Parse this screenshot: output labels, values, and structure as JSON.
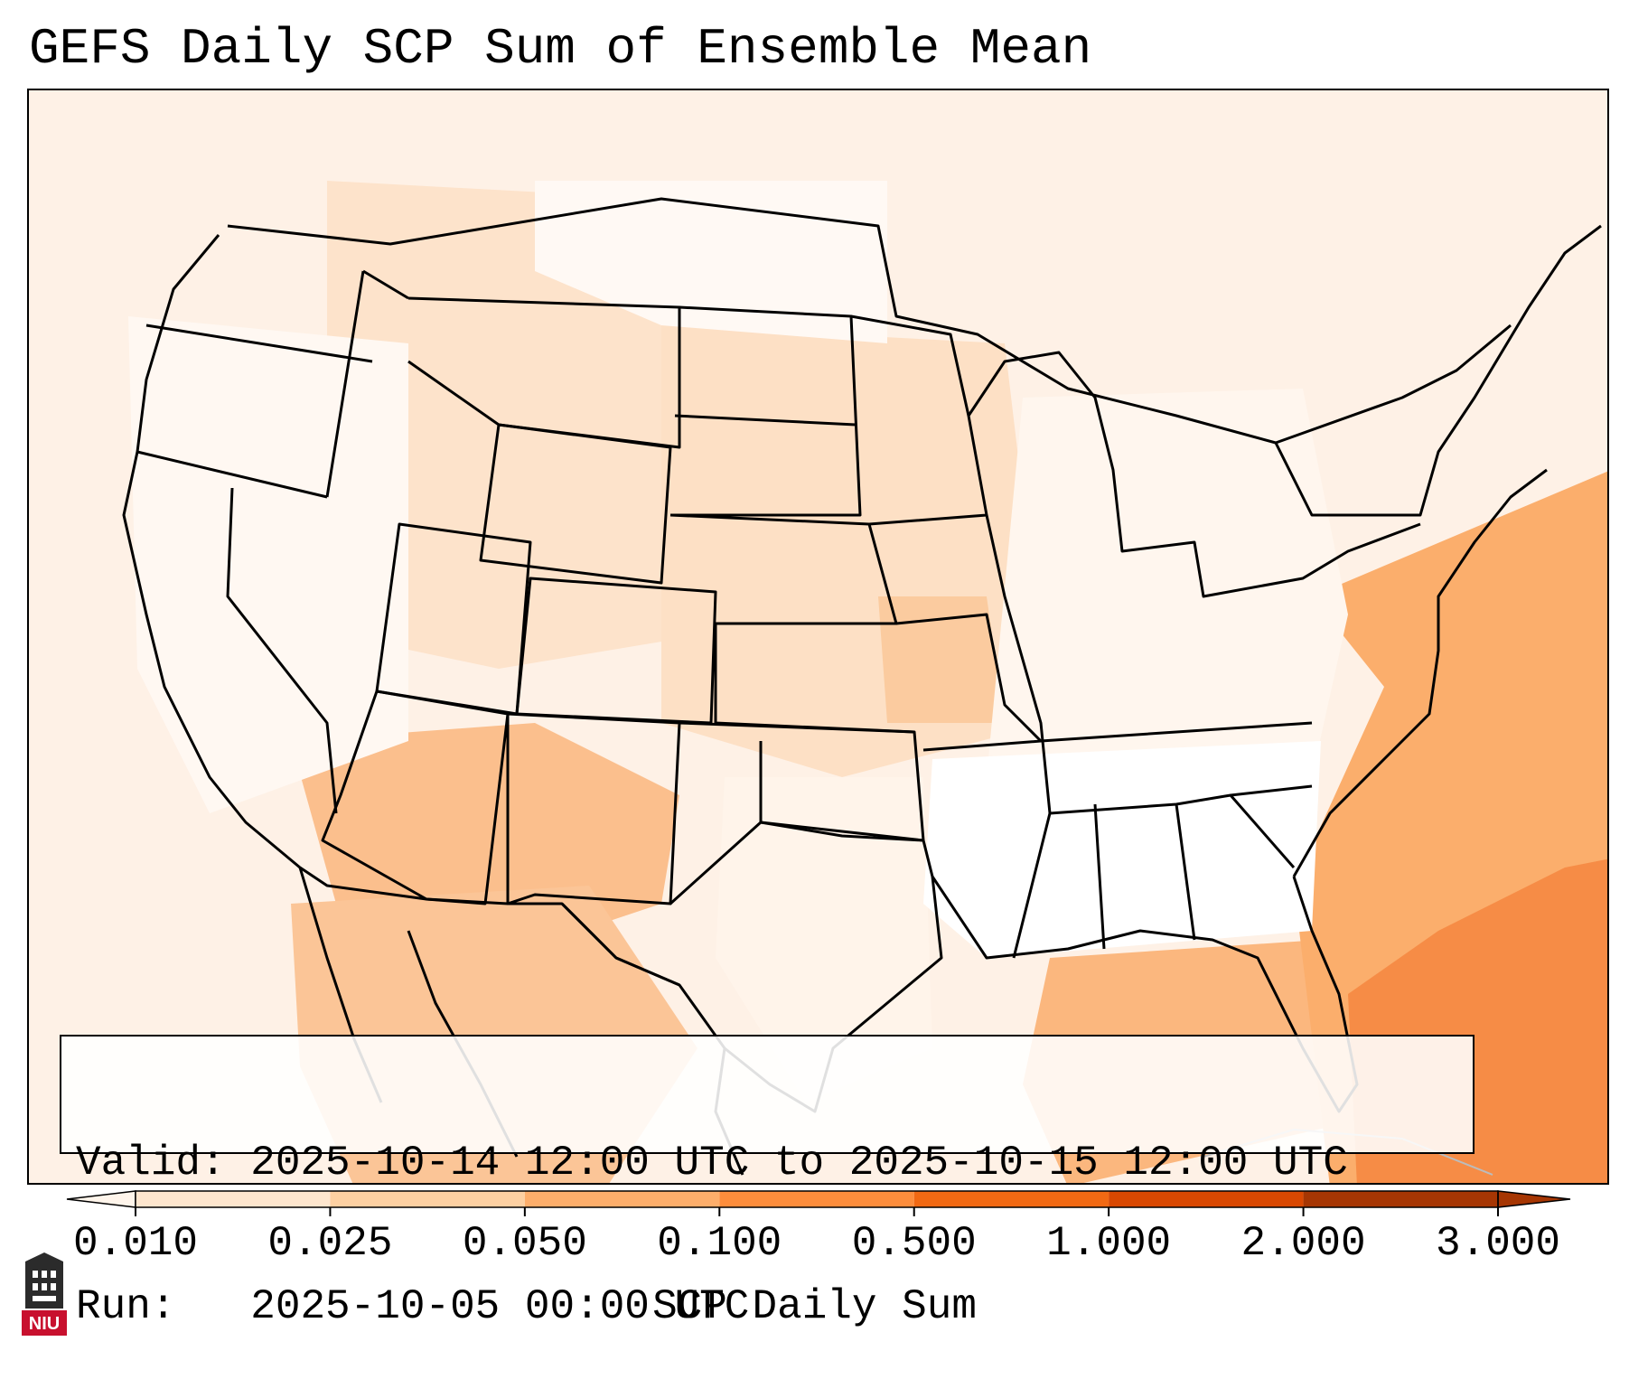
{
  "title": "GEFS Daily SCP Sum of Ensemble Mean",
  "info": {
    "valid_line": "Valid: 2025-10-14 12:00 UTC to 2025-10-15 12:00 UTC",
    "run_line": "Run:   2025-10-05 00:00 UTC"
  },
  "colorbar": {
    "label": "SCP Daily Sum",
    "ticks": [
      "0.010",
      "0.025",
      "0.050",
      "0.100",
      "0.500",
      "1.000",
      "2.000",
      "3.000"
    ],
    "colors": [
      "#fff5eb",
      "#fee6ce",
      "#fdd0a2",
      "#fdae6b",
      "#fd8d3c",
      "#f16913",
      "#d94801",
      "#a63603"
    ],
    "extend": "both"
  },
  "logo": {
    "text": "NIU"
  }
}
